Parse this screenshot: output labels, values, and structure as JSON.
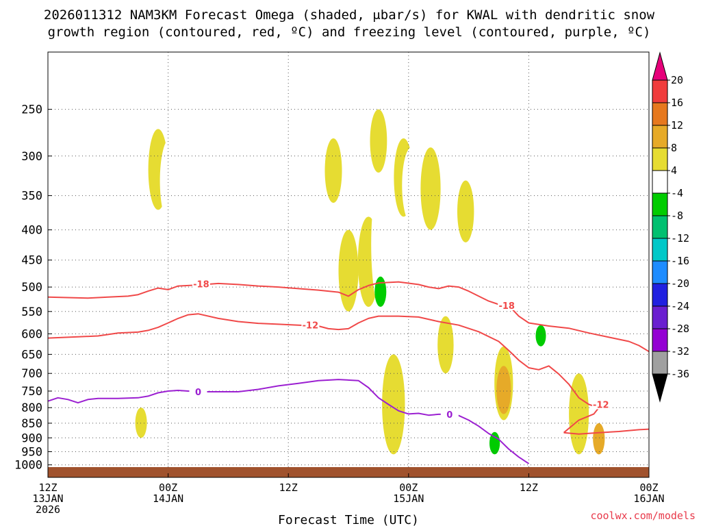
{
  "title_line1": "2026011312 NAM3KM Forecast Omega (shaded, μbar/s) for KWAL with dendritic snow",
  "title_line2": "growth region (contoured, red, ºC) and freezing level (contoured, purple, ºC)",
  "xlabel": "Forecast Time (UTC)",
  "credit": "coolwx.com/models",
  "chart_data": {
    "type": "heatmap",
    "title": "2026011312 NAM3KM Forecast Omega (shaded, μbar/s) for KWAL with dendritic snow growth region (contoured, red, ºC) and freezing level (contoured, purple, ºC)",
    "xlabel": "Forecast Time (UTC)",
    "ylabel": "",
    "x_range_hours": [
      0,
      60
    ],
    "y_log_pressure": true,
    "y_range_hpa": [
      1050,
      200
    ],
    "grid": true,
    "x_ticks": [
      {
        "hour": 0,
        "lines": [
          "12Z",
          "13JAN",
          "2026"
        ]
      },
      {
        "hour": 12,
        "lines": [
          "00Z",
          "14JAN"
        ]
      },
      {
        "hour": 24,
        "lines": [
          "12Z"
        ]
      },
      {
        "hour": 36,
        "lines": [
          "00Z",
          "15JAN"
        ]
      },
      {
        "hour": 48,
        "lines": [
          "12Z"
        ]
      },
      {
        "hour": 60,
        "lines": [
          "00Z",
          "16JAN"
        ]
      }
    ],
    "y_ticks": [
      250,
      300,
      350,
      400,
      450,
      500,
      550,
      600,
      650,
      700,
      750,
      800,
      850,
      900,
      950,
      1000
    ],
    "colorbar": {
      "position": "right",
      "levels": [
        -36,
        -32,
        -28,
        -24,
        -20,
        -16,
        -12,
        -8,
        -4,
        4,
        8,
        12,
        16,
        20
      ],
      "colors": [
        "#000000",
        "#a0a0a0",
        "#9400d3",
        "#6a1fd0",
        "#2020e0",
        "#1e8cff",
        "#00c8c8",
        "#00c070",
        "#00cc00",
        "#ffffff",
        "#e6dc32",
        "#e6aa28",
        "#e6781e",
        "#f03c3c",
        "#e6007a"
      ]
    },
    "dendritic_contours": [
      {
        "label": "-18",
        "points": [
          [
            0,
            520
          ],
          [
            4,
            522
          ],
          [
            6,
            520
          ],
          [
            8,
            518
          ],
          [
            9,
            515
          ],
          [
            10,
            508
          ],
          [
            11,
            502
          ],
          [
            12,
            505
          ],
          [
            13,
            498
          ],
          [
            15,
            496
          ],
          [
            17,
            493
          ],
          [
            19,
            495
          ],
          [
            21,
            498
          ],
          [
            23,
            500
          ],
          [
            25,
            503
          ],
          [
            27,
            506
          ],
          [
            29,
            510
          ],
          [
            30,
            518
          ],
          [
            31,
            505
          ],
          [
            32,
            497
          ],
          [
            33,
            492
          ],
          [
            35,
            490
          ],
          [
            37,
            495
          ],
          [
            38,
            500
          ],
          [
            39,
            503
          ],
          [
            40,
            498
          ],
          [
            41,
            500
          ],
          [
            42,
            508
          ],
          [
            43,
            518
          ],
          [
            44,
            528
          ],
          [
            45,
            535
          ],
          [
            46,
            537
          ],
          [
            47,
            560
          ],
          [
            48,
            575
          ],
          [
            50,
            582
          ],
          [
            52,
            587
          ],
          [
            54,
            598
          ],
          [
            56,
            608
          ],
          [
            58,
            618
          ],
          [
            59,
            628
          ],
          [
            60,
            643
          ]
        ]
      },
      {
        "label": "-12",
        "points": [
          [
            0,
            610
          ],
          [
            3,
            607
          ],
          [
            5,
            605
          ],
          [
            7,
            598
          ],
          [
            9,
            596
          ],
          [
            10,
            592
          ],
          [
            11,
            585
          ],
          [
            12,
            575
          ],
          [
            13,
            565
          ],
          [
            14,
            557
          ],
          [
            15,
            555
          ],
          [
            17,
            565
          ],
          [
            19,
            572
          ],
          [
            21,
            576
          ],
          [
            23,
            578
          ],
          [
            25,
            580
          ],
          [
            27,
            582
          ],
          [
            28,
            588
          ],
          [
            29,
            590
          ],
          [
            30,
            588
          ],
          [
            31,
            575
          ],
          [
            32,
            565
          ],
          [
            33,
            560
          ],
          [
            35,
            560
          ],
          [
            37,
            562
          ],
          [
            39,
            572
          ],
          [
            41,
            580
          ],
          [
            43,
            595
          ],
          [
            45,
            618
          ],
          [
            46,
            640
          ],
          [
            47,
            665
          ],
          [
            48,
            685
          ],
          [
            49,
            690
          ],
          [
            50,
            680
          ],
          [
            51,
            702
          ],
          [
            52,
            730
          ],
          [
            53,
            770
          ],
          [
            54,
            790
          ],
          [
            55,
            800
          ],
          [
            54.5,
            820
          ],
          [
            53,
            840
          ],
          [
            51.5,
            882
          ]
        ]
      },
      {
        "label": "",
        "points": [
          [
            51.5,
            882
          ],
          [
            53,
            887
          ],
          [
            55,
            882
          ],
          [
            57,
            878
          ],
          [
            59,
            872
          ],
          [
            60,
            870
          ]
        ]
      }
    ],
    "freezing_level": {
      "label": "0",
      "points": [
        [
          0,
          780
        ],
        [
          1,
          770
        ],
        [
          2,
          775
        ],
        [
          3,
          785
        ],
        [
          4,
          775
        ],
        [
          5,
          772
        ],
        [
          7,
          772
        ],
        [
          9,
          770
        ],
        [
          10,
          765
        ],
        [
          11,
          755
        ],
        [
          12,
          750
        ],
        [
          13,
          748
        ],
        [
          15,
          752
        ],
        [
          17,
          752
        ],
        [
          19,
          752
        ],
        [
          21,
          745
        ],
        [
          23,
          735
        ],
        [
          25,
          728
        ],
        [
          27,
          720
        ],
        [
          29,
          717
        ],
        [
          31,
          720
        ],
        [
          32,
          740
        ],
        [
          33,
          770
        ],
        [
          34,
          790
        ],
        [
          35,
          810
        ],
        [
          36,
          820
        ],
        [
          37,
          818
        ],
        [
          38,
          824
        ],
        [
          39,
          821
        ],
        [
          40,
          821
        ],
        [
          41,
          825
        ],
        [
          42,
          840
        ],
        [
          43,
          860
        ],
        [
          44,
          885
        ],
        [
          45,
          905
        ],
        [
          46,
          940
        ],
        [
          47,
          970
        ],
        [
          48,
          995
        ]
      ]
    },
    "omega_features": [
      {
        "level": 4,
        "hour": 11,
        "p_top": 270,
        "p_bot": 370
      },
      {
        "level": -4,
        "hour": 12.2,
        "p_top": 280,
        "p_bot": 390
      },
      {
        "level": -4,
        "hour": 11.3,
        "p_top": 700,
        "p_bot": 780
      },
      {
        "level": 4,
        "hour": 9.3,
        "p_top": 800,
        "p_bot": 900
      },
      {
        "level": -4,
        "hour": 19.2,
        "p_top": 780,
        "p_bot": 850
      },
      {
        "level": 4,
        "hour": 28.5,
        "p_top": 280,
        "p_bot": 360
      },
      {
        "level": 4,
        "hour": 30,
        "p_top": 400,
        "p_bot": 550
      },
      {
        "level": 4,
        "hour": 32,
        "p_top": 380,
        "p_bot": 540
      },
      {
        "level": 4,
        "hour": 33,
        "p_top": 250,
        "p_bot": 320
      },
      {
        "level": -4,
        "hour": 33.5,
        "p_top": 320,
        "p_bot": 560
      },
      {
        "level": -8,
        "hour": 33.2,
        "p_top": 480,
        "p_bot": 540
      },
      {
        "level": -4,
        "hour": 32.8,
        "p_top": 640,
        "p_bot": 970
      },
      {
        "level": 4,
        "hour": 34.5,
        "p_top": 650,
        "p_bot": 960
      },
      {
        "level": 4,
        "hour": 35.5,
        "p_top": 280,
        "p_bot": 380
      },
      {
        "level": -4,
        "hour": 36.3,
        "p_top": 290,
        "p_bot": 390
      },
      {
        "level": -4,
        "hour": 36.8,
        "p_top": 500,
        "p_bot": 590
      },
      {
        "level": 4,
        "hour": 38.2,
        "p_top": 290,
        "p_bot": 400
      },
      {
        "level": 4,
        "hour": 39.7,
        "p_top": 560,
        "p_bot": 700
      },
      {
        "level": 4,
        "hour": 41.7,
        "p_top": 330,
        "p_bot": 420
      },
      {
        "level": -4,
        "hour": 42.3,
        "p_top": 440,
        "p_bot": 520
      },
      {
        "level": -4,
        "hour": 45,
        "p_top": 215,
        "p_bot": 440
      },
      {
        "level": 4,
        "hour": 45.5,
        "p_top": 630,
        "p_bot": 840
      },
      {
        "level": 8,
        "hour": 45.5,
        "p_top": 680,
        "p_bot": 820
      },
      {
        "level": -4,
        "hour": 44.1,
        "p_top": 760,
        "p_bot": 960
      },
      {
        "level": -8,
        "hour": 44.6,
        "p_top": 880,
        "p_bot": 960
      },
      {
        "level": -4,
        "hour": 49.2,
        "p_top": 500,
        "p_bot": 700
      },
      {
        "level": -8,
        "hour": 49.2,
        "p_top": 580,
        "p_bot": 630
      },
      {
        "level": 4,
        "hour": 53,
        "p_top": 700,
        "p_bot": 960
      },
      {
        "level": 8,
        "hour": 55,
        "p_top": 850,
        "p_bot": 960
      }
    ]
  }
}
